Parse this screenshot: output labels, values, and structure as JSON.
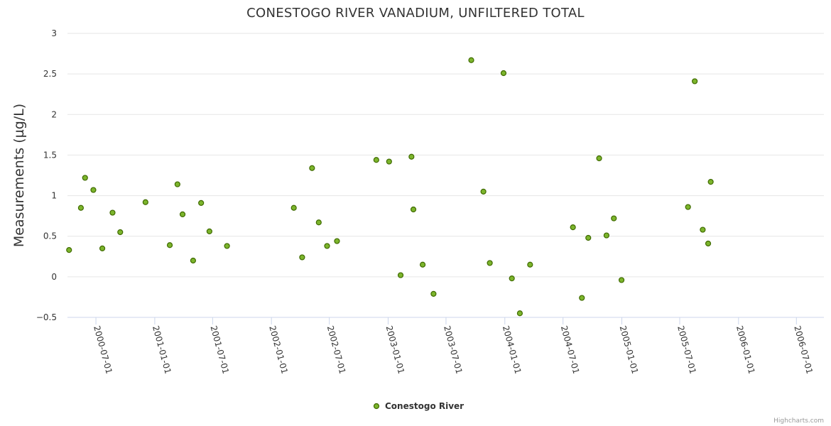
{
  "chart_data": {
    "type": "scatter",
    "title": "CONESTOGO RIVER VANADIUM, UNFILTERED TOTAL",
    "xlabel": "",
    "ylabel": "Measurements (µg/L)",
    "ylim": [
      -0.5,
      3
    ],
    "yticks": [
      "−0.5",
      "0",
      "0.5",
      "1",
      "1.5",
      "2",
      "2.5",
      "3"
    ],
    "ytick_values": [
      -0.5,
      0,
      0.5,
      1,
      1.5,
      2,
      2.5,
      3
    ],
    "xlim": [
      "2000-04-03",
      "2006-09-25"
    ],
    "xticks": [
      "2000-07-01",
      "2001-01-01",
      "2001-07-01",
      "2002-01-01",
      "2002-07-01",
      "2003-01-01",
      "2003-07-01",
      "2004-01-01",
      "2004-07-01",
      "2005-01-01",
      "2005-07-01",
      "2006-01-01",
      "2006-07-01"
    ],
    "legend": "bottom-center",
    "series": [
      {
        "name": "Conestogo River",
        "color": "#7cb52c",
        "points": [
          {
            "x": "2000-04-08",
            "y": 0.33
          },
          {
            "x": "2000-05-15",
            "y": 0.85
          },
          {
            "x": "2000-05-28",
            "y": 1.22
          },
          {
            "x": "2000-06-23",
            "y": 1.07
          },
          {
            "x": "2000-07-21",
            "y": 0.35
          },
          {
            "x": "2000-08-22",
            "y": 0.79
          },
          {
            "x": "2000-09-15",
            "y": 0.55
          },
          {
            "x": "2000-12-03",
            "y": 0.92
          },
          {
            "x": "2001-02-17",
            "y": 0.39
          },
          {
            "x": "2001-03-13",
            "y": 1.14
          },
          {
            "x": "2001-03-29",
            "y": 0.77
          },
          {
            "x": "2001-05-01",
            "y": 0.2
          },
          {
            "x": "2001-05-26",
            "y": 0.91
          },
          {
            "x": "2001-06-21",
            "y": 0.56
          },
          {
            "x": "2001-08-15",
            "y": 0.38
          },
          {
            "x": "2002-03-12",
            "y": 0.85
          },
          {
            "x": "2002-04-07",
            "y": 0.24
          },
          {
            "x": "2002-05-08",
            "y": 1.34
          },
          {
            "x": "2002-05-29",
            "y": 0.67
          },
          {
            "x": "2002-06-24",
            "y": 0.38
          },
          {
            "x": "2002-07-25",
            "y": 0.44
          },
          {
            "x": "2002-11-25",
            "y": 1.44
          },
          {
            "x": "2003-01-04",
            "y": 1.42
          },
          {
            "x": "2003-02-09",
            "y": 0.02
          },
          {
            "x": "2003-03-15",
            "y": 1.48
          },
          {
            "x": "2003-03-21",
            "y": 0.83
          },
          {
            "x": "2003-04-19",
            "y": 0.15
          },
          {
            "x": "2003-05-23",
            "y": -0.21
          },
          {
            "x": "2003-09-18",
            "y": 2.67
          },
          {
            "x": "2003-10-26",
            "y": 1.05
          },
          {
            "x": "2003-11-15",
            "y": 0.17
          },
          {
            "x": "2003-12-28",
            "y": 2.51
          },
          {
            "x": "2004-01-23",
            "y": -0.02
          },
          {
            "x": "2004-02-17",
            "y": -0.45
          },
          {
            "x": "2004-03-20",
            "y": 0.15
          },
          {
            "x": "2004-08-01",
            "y": 0.61
          },
          {
            "x": "2004-08-29",
            "y": -0.26
          },
          {
            "x": "2004-09-18",
            "y": 0.48
          },
          {
            "x": "2004-10-22",
            "y": 1.46
          },
          {
            "x": "2004-11-14",
            "y": 0.51
          },
          {
            "x": "2004-12-07",
            "y": 0.72
          },
          {
            "x": "2004-12-31",
            "y": -0.04
          },
          {
            "x": "2005-07-27",
            "y": 0.86
          },
          {
            "x": "2005-08-17",
            "y": 2.41
          },
          {
            "x": "2005-09-11",
            "y": 0.58
          },
          {
            "x": "2005-09-28",
            "y": 0.41
          },
          {
            "x": "2005-10-06",
            "y": 1.17
          }
        ]
      }
    ]
  },
  "credits": "Highcharts.com"
}
